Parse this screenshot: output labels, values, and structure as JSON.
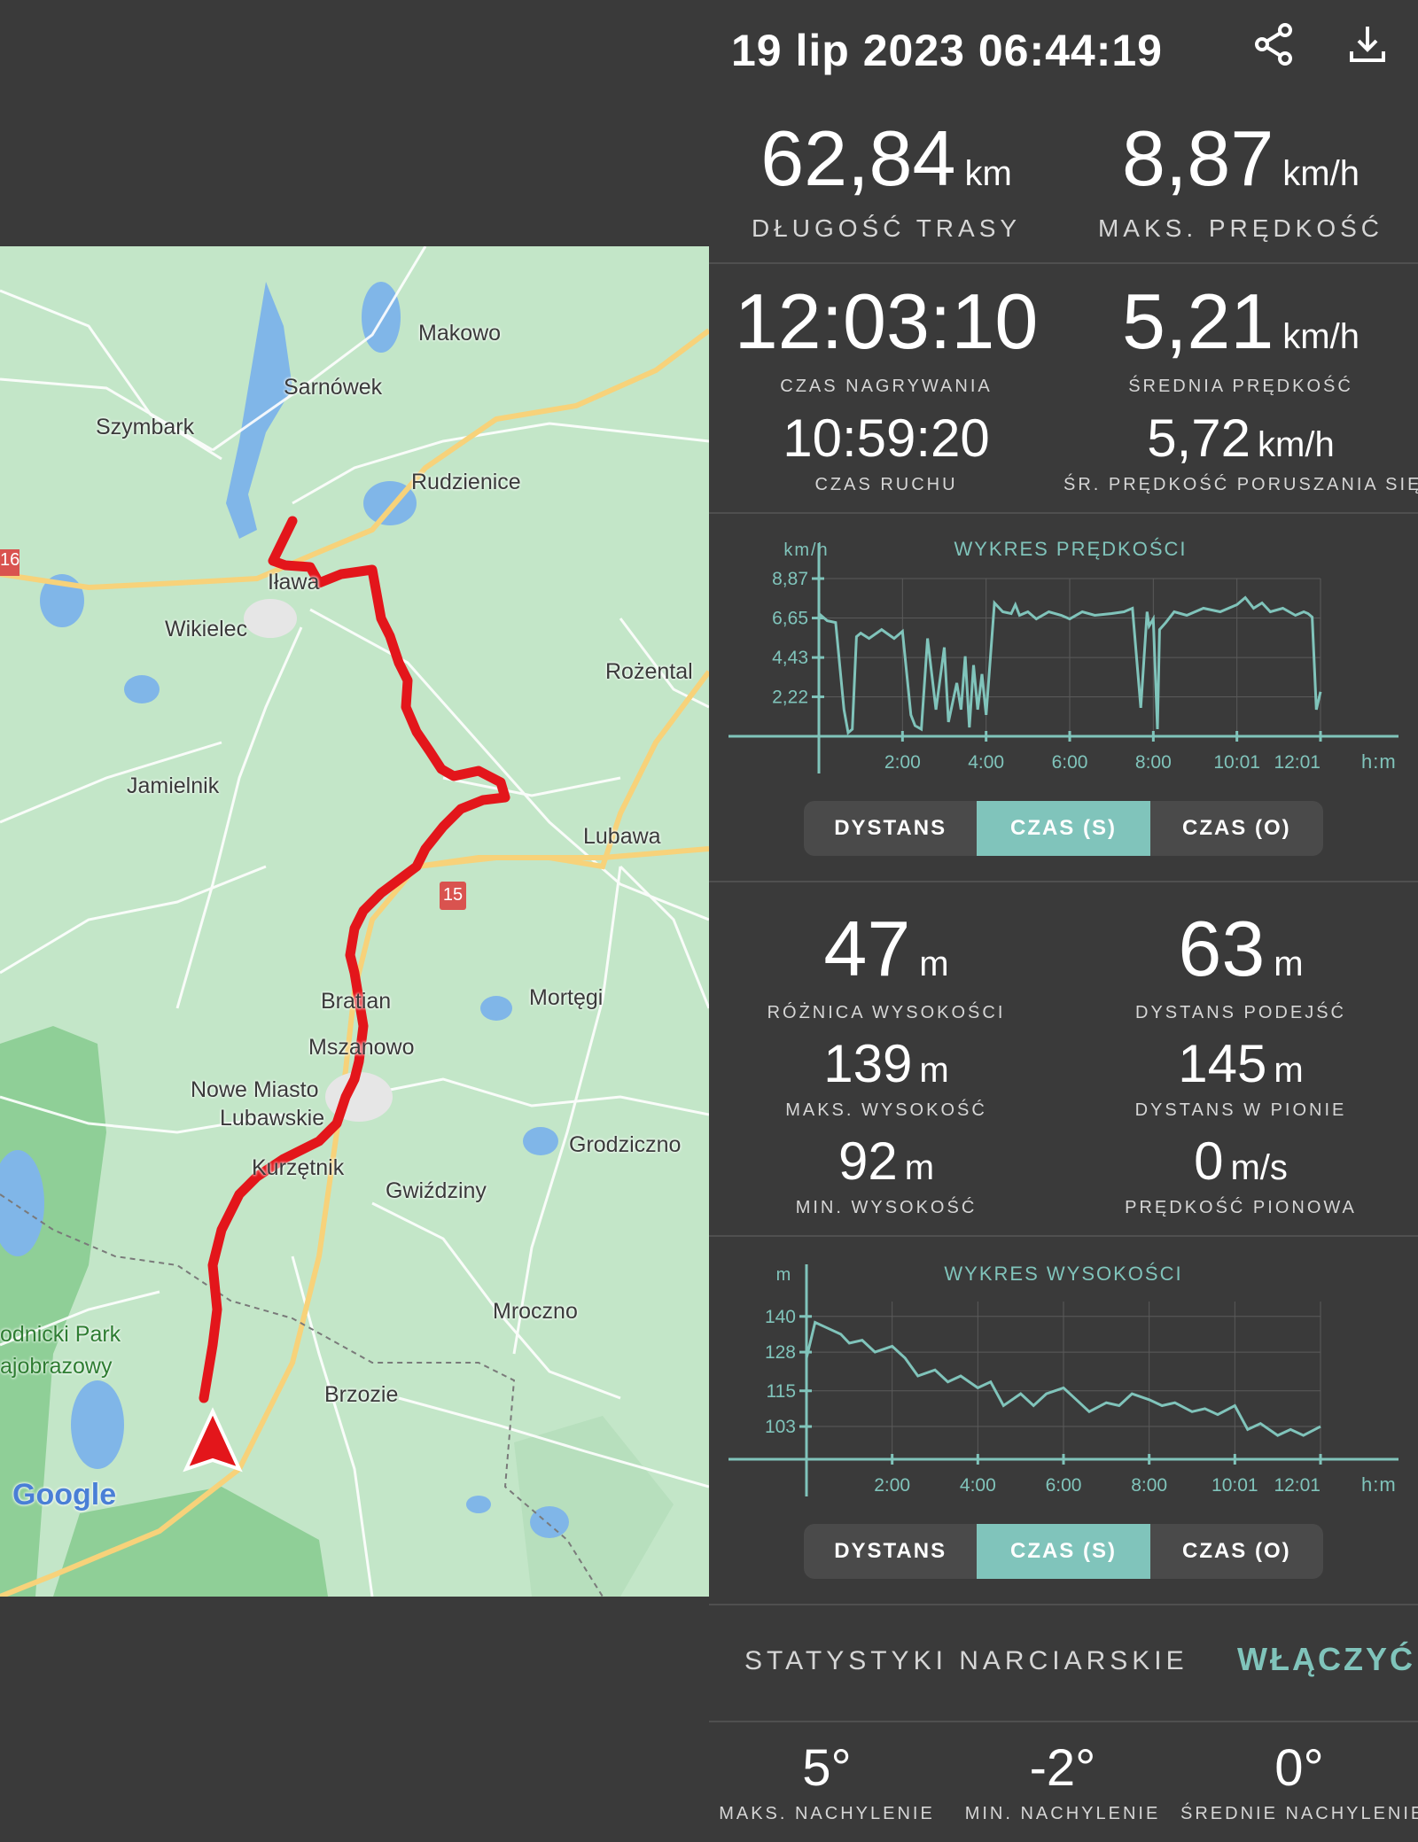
{
  "header": {
    "title": "19 lip 2023 06:44:19",
    "share_icon": "share-icon",
    "download_icon": "download-icon"
  },
  "stats": {
    "distance": {
      "value": "62,84",
      "unit": "km",
      "label": "DŁUGOŚĆ TRASY"
    },
    "max_speed": {
      "value": "8,87",
      "unit": "km/h",
      "label": "MAKS. PRĘDKOŚĆ"
    },
    "rec_time": {
      "value": "12:03:10",
      "label": "CZAS NAGRYWANIA"
    },
    "avg_speed": {
      "value": "5,21",
      "unit": "km/h",
      "label": "ŚREDNIA PRĘDKOŚĆ"
    },
    "moving_time": {
      "value": "10:59:20",
      "label": "CZAS RUCHU"
    },
    "avg_moving_speed": {
      "value": "5,72",
      "unit": "km/h",
      "label": "ŚR. PRĘDKOŚĆ PORUSZANIA SIĘ"
    },
    "elev_diff": {
      "value": "47",
      "unit": "m",
      "label": "RÓŻNICA WYSOKOŚCI"
    },
    "ascent": {
      "value": "63",
      "unit": "m",
      "label": "DYSTANS PODEJŚĆ"
    },
    "max_alt": {
      "value": "139",
      "unit": "m",
      "label": "MAKS. WYSOKOŚĆ"
    },
    "vertical": {
      "value": "145",
      "unit": "m",
      "label": "DYSTANS W PIONIE"
    },
    "min_alt": {
      "value": "92",
      "unit": "m",
      "label": "MIN. WYSOKOŚĆ"
    },
    "vspeed": {
      "value": "0",
      "unit": "m/s",
      "label": "PRĘDKOŚĆ PIONOWA"
    }
  },
  "speed_chart": {
    "title": "WYKRES PRĘDKOŚCI",
    "y_unit": "km/h",
    "x_unit": "h:m",
    "y_ticks": [
      "8,87",
      "6,65",
      "4,43",
      "2,22"
    ],
    "x_ticks": [
      "2:00",
      "4:00",
      "6:00",
      "8:00",
      "10:01",
      "12:01"
    ],
    "tabs": [
      "DYSTANS",
      "CZAS (S)",
      "CZAS (O)"
    ],
    "active_tab": 1
  },
  "alt_chart": {
    "title": "WYKRES WYSOKOŚCI",
    "y_unit": "m",
    "x_unit": "h:m",
    "y_ticks": [
      "140",
      "128",
      "115",
      "103"
    ],
    "x_ticks": [
      "2:00",
      "4:00",
      "6:00",
      "8:00",
      "10:01",
      "12:01"
    ],
    "tabs": [
      "DYSTANS",
      "CZAS (S)",
      "CZAS (O)"
    ],
    "active_tab": 1
  },
  "chart_data": [
    {
      "type": "line",
      "title": "WYKRES PRĘDKOŚCI",
      "ylabel": "km/h",
      "xlabel": "h:m",
      "ylim": [
        0,
        8.87
      ],
      "x_ticks": [
        "2:00",
        "4:00",
        "6:00",
        "8:00",
        "10:01",
        "12:01"
      ],
      "series": [
        {
          "x": [
            0,
            0.2,
            0.4,
            0.6,
            0.7,
            0.8,
            0.9,
            1.0,
            1.2,
            1.5,
            1.8,
            2.0,
            2.2,
            2.3,
            2.45,
            2.6,
            2.8,
            3.0,
            3.1,
            3.3,
            3.4,
            3.5,
            3.6,
            3.7,
            3.8,
            3.9,
            4.0,
            4.2,
            4.4,
            4.6,
            4.7,
            4.8,
            5.0,
            5.2,
            5.5,
            5.8,
            6.0,
            6.3,
            6.6,
            7.0,
            7.3,
            7.5,
            7.7,
            7.85,
            7.9,
            8.0,
            8.1,
            8.15,
            8.3,
            8.5,
            8.8,
            9.2,
            9.6,
            10.0,
            10.2,
            10.4,
            10.6,
            10.8,
            11.1,
            11.4,
            11.6,
            11.7,
            11.8,
            11.9,
            12.0
          ],
          "y": [
            6.9,
            6.5,
            6.4,
            1.5,
            0.2,
            0.4,
            5.6,
            5.8,
            5.5,
            6.0,
            5.5,
            5.9,
            1.2,
            0.6,
            0.4,
            5.5,
            1.5,
            5.0,
            0.8,
            3.0,
            1.5,
            4.5,
            0.5,
            4.0,
            1.5,
            3.5,
            1.2,
            7.5,
            7.0,
            6.9,
            7.4,
            6.8,
            7.0,
            6.6,
            7.0,
            6.8,
            6.6,
            7.0,
            6.8,
            6.9,
            7.0,
            7.2,
            1.6,
            7.0,
            6.2,
            6.6,
            0.4,
            6.0,
            6.4,
            7.0,
            6.8,
            7.2,
            7.0,
            7.4,
            7.8,
            7.2,
            7.5,
            7.0,
            7.2,
            6.8,
            7.0,
            6.9,
            6.7,
            1.5,
            2.5
          ]
        }
      ]
    },
    {
      "type": "line",
      "title": "WYKRES WYSOKOŚCI",
      "ylabel": "m",
      "xlabel": "h:m",
      "ylim": [
        92,
        145
      ],
      "x_ticks": [
        "2:00",
        "4:00",
        "6:00",
        "8:00",
        "10:01",
        "12:01"
      ],
      "series": [
        {
          "x": [
            0,
            0.2,
            0.5,
            0.8,
            1.0,
            1.3,
            1.6,
            2.0,
            2.3,
            2.6,
            3.0,
            3.3,
            3.6,
            4.0,
            4.3,
            4.6,
            5.0,
            5.3,
            5.6,
            6.0,
            6.3,
            6.6,
            7.0,
            7.3,
            7.6,
            8.0,
            8.3,
            8.6,
            9.0,
            9.3,
            9.6,
            10.0,
            10.3,
            10.6,
            11.0,
            11.3,
            11.6,
            12.0
          ],
          "y": [
            126,
            138,
            136,
            134,
            131,
            132,
            128,
            130,
            126,
            120,
            122,
            118,
            120,
            116,
            118,
            110,
            114,
            110,
            114,
            116,
            112,
            108,
            111,
            110,
            114,
            112,
            110,
            111,
            108,
            109,
            107,
            110,
            102,
            104,
            100,
            102,
            100,
            103
          ]
        }
      ]
    }
  ],
  "ski": {
    "title": "STATYSTYKI NARCIARSKIE",
    "action": "WŁĄCZYĆ",
    "max_slope": {
      "value": "5°",
      "label": "MAKS. NACHYLENIE"
    },
    "min_slope": {
      "value": "-2°",
      "label": "MIN. NACHYLENIE"
    },
    "avg_slope": {
      "value": "0°",
      "label": "ŚREDNIE NACHYLENIE"
    }
  },
  "map": {
    "places": [
      "Makowo",
      "Sarnówek",
      "Szymbark",
      "Rudzienice",
      "Iława",
      "Wikielec",
      "Rożental",
      "Jamielnik",
      "Lubawa",
      "Bratian",
      "Mortęgi",
      "Mszanowo",
      "Nowe Miasto",
      "Lubawskie",
      "Kurzętnik",
      "Gwiździny",
      "Grodziczno",
      "Mroczno",
      "Brzozie",
      "odnicki Park",
      "ajobrazowy"
    ],
    "road_labels": [
      "16",
      "15"
    ],
    "logo": "Google",
    "colors": {
      "route": "#e3161b",
      "land": "#c3e6c8",
      "water": "#80b6e8",
      "road": "#f7d27a",
      "forest": "#8fcf97"
    }
  }
}
